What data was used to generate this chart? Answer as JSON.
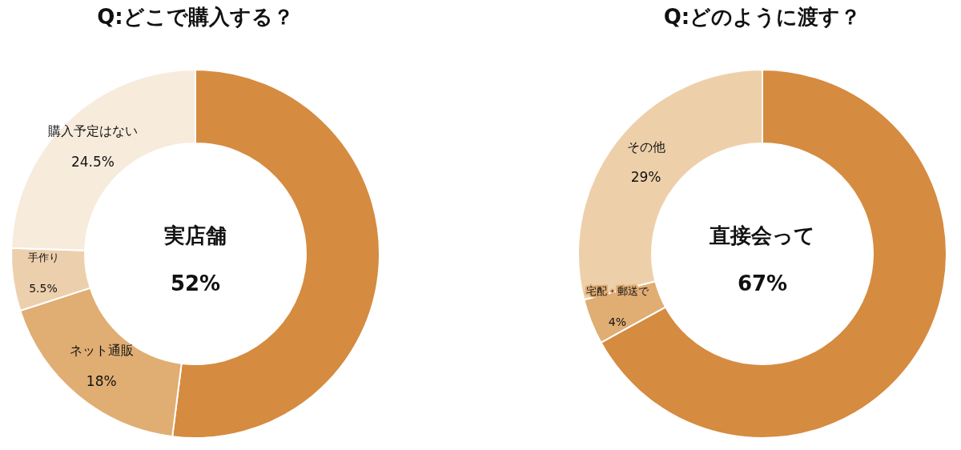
{
  "chart_data": [
    {
      "type": "donut",
      "title": "Q:どこで購入する？",
      "categories": [
        "実店舗",
        "ネット通販",
        "手作り",
        "購入予定はない"
      ],
      "values": [
        52,
        18,
        5.5,
        24.5
      ],
      "value_labels": [
        "52%",
        "18%",
        "5.5%",
        "24.5%"
      ],
      "colors": [
        "#d58b40",
        "#e0ad73",
        "#ecd0ae",
        "#f7ebdc"
      ]
    },
    {
      "type": "donut",
      "title": "Q:どのように渡す？",
      "categories": [
        "直接会って",
        "宅配・郵送で",
        "その他"
      ],
      "values": [
        67,
        4,
        29
      ],
      "value_labels": [
        "67%",
        "4%",
        "29%"
      ],
      "colors": [
        "#d58b40",
        "#e0ad73",
        "#edd0aa"
      ]
    }
  ]
}
